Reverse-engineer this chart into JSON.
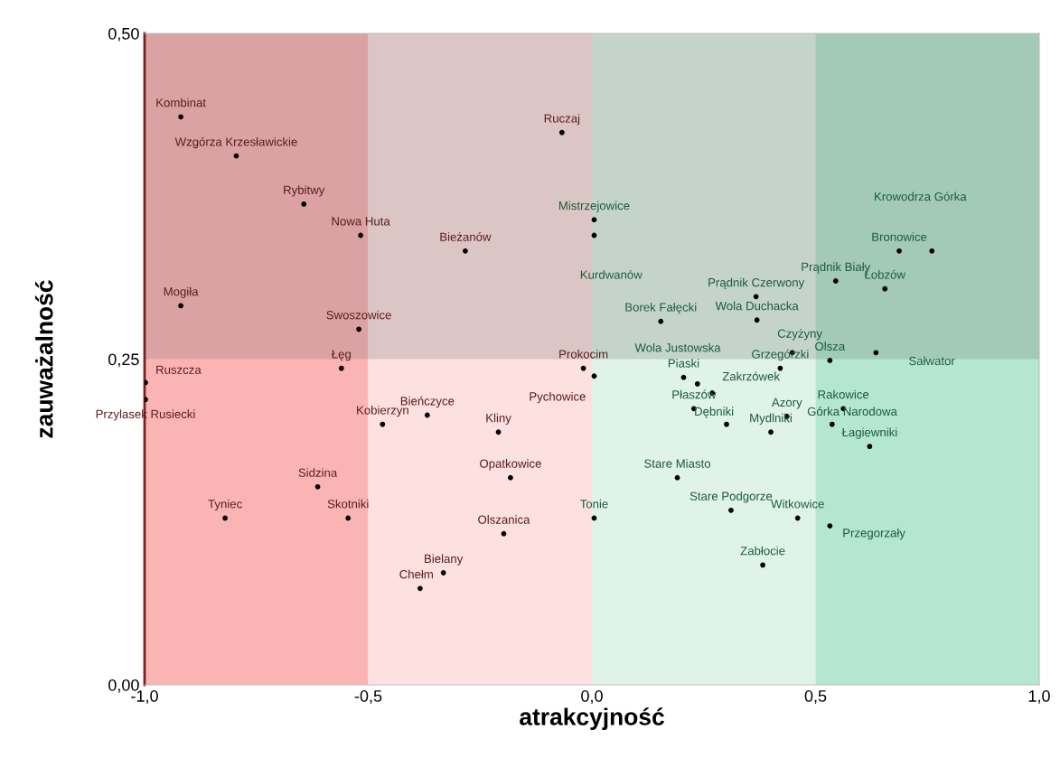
{
  "chart_data": {
    "type": "scatter",
    "xlabel": "atrakcyjność",
    "ylabel": "zauważalność",
    "xlim": [
      -1.0,
      1.0
    ],
    "ylim": [
      0.0,
      0.5
    ],
    "xticks": [
      {
        "value": -1.0,
        "label": "-1,0"
      },
      {
        "value": -0.5,
        "label": "-0,5"
      },
      {
        "value": 0.0,
        "label": "0,0"
      },
      {
        "value": 0.5,
        "label": "0,5"
      },
      {
        "value": 1.0,
        "label": "1,0"
      }
    ],
    "yticks": [
      {
        "value": 0.0,
        "label": "0,00"
      },
      {
        "value": 0.25,
        "label": "0,25"
      },
      {
        "value": 0.5,
        "label": "0,50"
      }
    ],
    "grid": false,
    "marker": "circle",
    "bands": [
      {
        "axis": "x",
        "from": -1.0,
        "to": -0.5,
        "color": "#fbb4b4"
      },
      {
        "axis": "x",
        "from": -0.5,
        "to": 0.0,
        "color": "#fde0e0"
      },
      {
        "axis": "x",
        "from": 0.0,
        "to": 0.5,
        "color": "#dff3e9"
      },
      {
        "axis": "x",
        "from": 0.5,
        "to": 1.0,
        "color": "#b5e6cf"
      },
      {
        "axis": "y",
        "from": 0.25,
        "to": 0.5,
        "color": "#5a5a5a"
      }
    ],
    "series": [
      {
        "color": "#000000",
        "x": [
          -0.919,
          -0.795,
          -0.644,
          -0.517,
          -0.919,
          -0.521,
          -0.56,
          -0.998,
          -0.998,
          -0.468,
          -0.613,
          -0.82,
          -0.545,
          -0.067,
          0.005,
          0.005,
          -0.283,
          0.154,
          -0.019,
          0.005,
          -0.368,
          -0.209,
          -0.182,
          0.005,
          -0.197,
          -0.332,
          -0.384,
          0.191,
          0.311,
          0.46,
          0.532,
          0.382,
          0.228,
          0.301,
          0.4,
          0.436,
          0.537,
          0.562,
          0.621,
          0.205,
          0.236,
          0.269,
          0.421,
          0.448,
          0.532,
          0.635,
          0.545,
          0.655,
          0.367,
          0.369,
          0.687,
          0.76
        ],
        "values": [
          0.436,
          0.406,
          0.369,
          0.345,
          0.291,
          0.273,
          0.243,
          0.232,
          0.219,
          0.2,
          0.152,
          0.128,
          0.128,
          0.424,
          0.357,
          0.345,
          0.333,
          0.279,
          0.243,
          0.237,
          0.207,
          0.194,
          0.159,
          0.128,
          0.116,
          0.086,
          0.074,
          0.159,
          0.134,
          0.128,
          0.122,
          0.092,
          0.212,
          0.2,
          0.194,
          0.206,
          0.2,
          0.212,
          0.183,
          0.236,
          0.231,
          0.224,
          0.243,
          0.255,
          0.249,
          0.255,
          0.31,
          0.304,
          0.298,
          0.28,
          0.333,
          0.333
        ]
      }
    ],
    "annotations": [
      {
        "text": "Kombinat",
        "x": -0.919,
        "y": 0.436
      },
      {
        "text": "Wzgórza Krzesławickie",
        "x": -0.795,
        "y": 0.406
      },
      {
        "text": "Rybitwy",
        "x": -0.644,
        "y": 0.369
      },
      {
        "text": "Nowa Huta",
        "x": -0.517,
        "y": 0.345
      },
      {
        "text": "Mogiła",
        "x": -0.919,
        "y": 0.291
      },
      {
        "text": "Swoszowice",
        "x": -0.521,
        "y": 0.273
      },
      {
        "text": "Łęg",
        "x": -0.56,
        "y": 0.243
      },
      {
        "text": "Ruszcza",
        "x": -0.998,
        "y": 0.232
      },
      {
        "text": "Przylasek Rusiecki",
        "x": -0.998,
        "y": 0.219
      },
      {
        "text": "Kobierzyn",
        "x": -0.468,
        "y": 0.2
      },
      {
        "text": "Bieńczyce",
        "x": -0.368,
        "y": 0.207
      },
      {
        "text": "Kliny",
        "x": -0.209,
        "y": 0.194
      },
      {
        "text": "Opatkowice",
        "x": -0.182,
        "y": 0.159
      },
      {
        "text": "Tonie",
        "x": 0.005,
        "y": 0.128
      },
      {
        "text": "Olszanica",
        "x": -0.197,
        "y": 0.116
      },
      {
        "text": "Bielany",
        "x": -0.332,
        "y": 0.086
      },
      {
        "text": "Chełm",
        "x": -0.384,
        "y": 0.074
      },
      {
        "text": "Sidzina",
        "x": -0.613,
        "y": 0.152
      },
      {
        "text": "Tyniec",
        "x": -0.82,
        "y": 0.128
      },
      {
        "text": "Skotniki",
        "x": -0.545,
        "y": 0.128
      },
      {
        "text": "Ruczaj",
        "x": -0.067,
        "y": 0.424
      },
      {
        "text": "Mistrzejowice",
        "x": 0.005,
        "y": 0.357
      },
      {
        "text": "Bieżanów",
        "x": -0.283,
        "y": 0.333
      },
      "Kurdwanów",
      {
        "text": "Borek Fałęcki",
        "x": 0.154,
        "y": 0.279
      },
      {
        "text": "Prokocim",
        "x": -0.019,
        "y": 0.243
      },
      "Pychowice",
      "Wola Justowska",
      {
        "text": "Piaski",
        "x": 0.205,
        "y": 0.236
      },
      {
        "text": "Zakrzówek",
        "x": 0.269,
        "y": 0.224
      },
      {
        "text": "Płaszów",
        "x": 0.228,
        "y": 0.212
      },
      {
        "text": "Dębniki",
        "x": 0.301,
        "y": 0.2
      },
      {
        "text": "Mydlniki",
        "x": 0.4,
        "y": 0.194
      },
      {
        "text": "Azory",
        "x": 0.436,
        "y": 0.206
      },
      {
        "text": "Górka Narodowa",
        "x": 0.537,
        "y": 0.2
      },
      {
        "text": "Rakowice",
        "x": 0.562,
        "y": 0.212
      },
      {
        "text": "Łagiewniki",
        "x": 0.621,
        "y": 0.183
      },
      {
        "text": "Stare Miasto",
        "x": 0.191,
        "y": 0.159
      },
      {
        "text": "Stare Podgorze",
        "x": 0.311,
        "y": 0.134
      },
      {
        "text": "Witkowice",
        "x": 0.46,
        "y": 0.128
      },
      {
        "text": "Przegorzały",
        "x": 0.532,
        "y": 0.122
      },
      {
        "text": "Zabłocie",
        "x": 0.382,
        "y": 0.092
      },
      {
        "text": "Grzegórzki",
        "x": 0.421,
        "y": 0.243
      },
      {
        "text": "Czyżyny",
        "x": 0.448,
        "y": 0.255
      },
      {
        "text": "Olsza",
        "x": 0.532,
        "y": 0.249
      },
      {
        "text": "Sałwator",
        "x": 0.635,
        "y": 0.255
      },
      {
        "text": "Prądnik Biały",
        "x": 0.545,
        "y": 0.31
      },
      {
        "text": "Łobzów",
        "x": 0.655,
        "y": 0.304
      },
      {
        "text": "Prądnik Czerwony",
        "x": 0.367,
        "y": 0.298
      },
      {
        "text": "Wola Duchacka",
        "x": 0.369,
        "y": 0.28
      },
      {
        "text": "Bronowice",
        "x": 0.687,
        "y": 0.333
      },
      "Krowodrza Górka"
    ]
  }
}
